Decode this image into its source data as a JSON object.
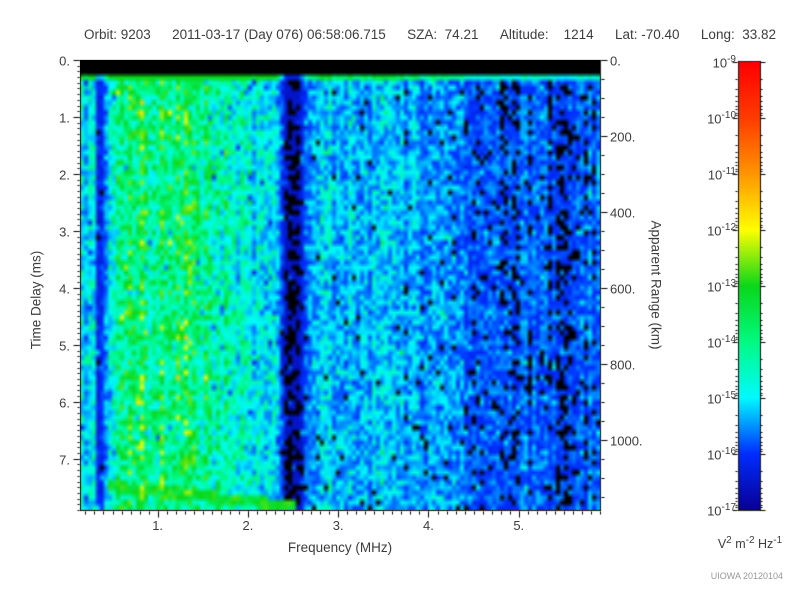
{
  "header": {
    "segments": [
      "Orbit: 9203",
      "2011-03-17 (Day 076) 06:58:06.715",
      "SZA:  74.21",
      "Altitude:    1214",
      "Lat: -70.40",
      "Long:  33.82"
    ]
  },
  "watermark": "UIOWA 20120104",
  "chart_data": {
    "type": "heatmap",
    "xlabel": "Frequency (MHz)",
    "ylabel": "Time Delay (ms)",
    "y2label": "Apparent Range (km)",
    "x_range": [
      0.14,
      5.9
    ],
    "x_major_ticks": [
      1,
      2,
      3,
      4,
      5
    ],
    "x_tick_labels": [
      "1.",
      "2.",
      "3.",
      "4.",
      "5."
    ],
    "x_minor_step": 0.1,
    "y_range": [
      0,
      7.9
    ],
    "y_major_ticks": [
      0,
      1,
      2,
      3,
      4,
      5,
      6,
      7
    ],
    "y_tick_labels": [
      "0.",
      "1.",
      "2.",
      "3.",
      "4.",
      "5.",
      "6.",
      "7."
    ],
    "y_minor_step": 0.1,
    "y2_range": [
      0,
      1184
    ],
    "y2_major_ticks": [
      0,
      200,
      400,
      600,
      800,
      1000
    ],
    "y2_tick_labels": [
      "0.",
      "200.",
      "400.",
      "600.",
      "800.",
      "1000."
    ],
    "y2_minor_step": 50,
    "grid": false,
    "colorbar": {
      "scale": "log",
      "max_label_exponent": -9,
      "min_label_exponent": -17,
      "exponents": [
        -9,
        -10,
        -11,
        -12,
        -13,
        -14,
        -15,
        -16,
        -17
      ],
      "units_parts": [
        {
          "t": "V"
        },
        {
          "t": "2",
          "sup": true
        },
        {
          "t": " m"
        },
        {
          "t": "-2",
          "sup": true
        },
        {
          "t": " Hz"
        },
        {
          "t": "-1",
          "sup": true
        }
      ],
      "stops": [
        [
          0.0,
          [
            8,
            0,
            150
          ]
        ],
        [
          0.125,
          [
            0,
            45,
            255
          ]
        ],
        [
          0.25,
          [
            0,
            250,
            255
          ]
        ],
        [
          0.375,
          [
            0,
            250,
            130
          ]
        ],
        [
          0.5,
          [
            10,
            215,
            25
          ]
        ],
        [
          0.625,
          [
            255,
            255,
            0
          ]
        ],
        [
          0.75,
          [
            255,
            150,
            0
          ]
        ],
        [
          0.875,
          [
            255,
            60,
            0
          ]
        ],
        [
          1.0,
          [
            255,
            0,
            0
          ]
        ]
      ]
    },
    "texture": {
      "seed": 9203,
      "grid": [
        130,
        90
      ],
      "black_top_ms": 0.27,
      "bright_row_ms": 0.36,
      "intensity_profile": [
        [
          0.14,
          0.34
        ],
        [
          0.18,
          0.38
        ],
        [
          0.21,
          0.24
        ],
        [
          0.25,
          0.4
        ],
        [
          0.3,
          0.34
        ],
        [
          0.34,
          0.12
        ],
        [
          0.4,
          0.14
        ],
        [
          0.48,
          0.42
        ],
        [
          0.6,
          0.5
        ],
        [
          0.8,
          0.55
        ],
        [
          1.05,
          0.56
        ],
        [
          1.35,
          0.54
        ],
        [
          1.6,
          0.5
        ],
        [
          1.75,
          0.44
        ],
        [
          2.0,
          0.38
        ],
        [
          2.3,
          0.34
        ],
        [
          2.42,
          0.07
        ],
        [
          2.56,
          0.07
        ],
        [
          2.7,
          0.31
        ],
        [
          3.2,
          0.3
        ],
        [
          3.7,
          0.28
        ],
        [
          4.1,
          0.25
        ],
        [
          4.6,
          0.22
        ],
        [
          5.1,
          0.21
        ],
        [
          5.45,
          0.18
        ],
        [
          5.7,
          0.2
        ],
        [
          5.9,
          0.22
        ]
      ],
      "echo_trace": {
        "f_start": 0.45,
        "f_end": 2.52,
        "t_start": 7.48,
        "slope": 0.17,
        "half_width": 0.1,
        "level": 0.42
      }
    }
  }
}
